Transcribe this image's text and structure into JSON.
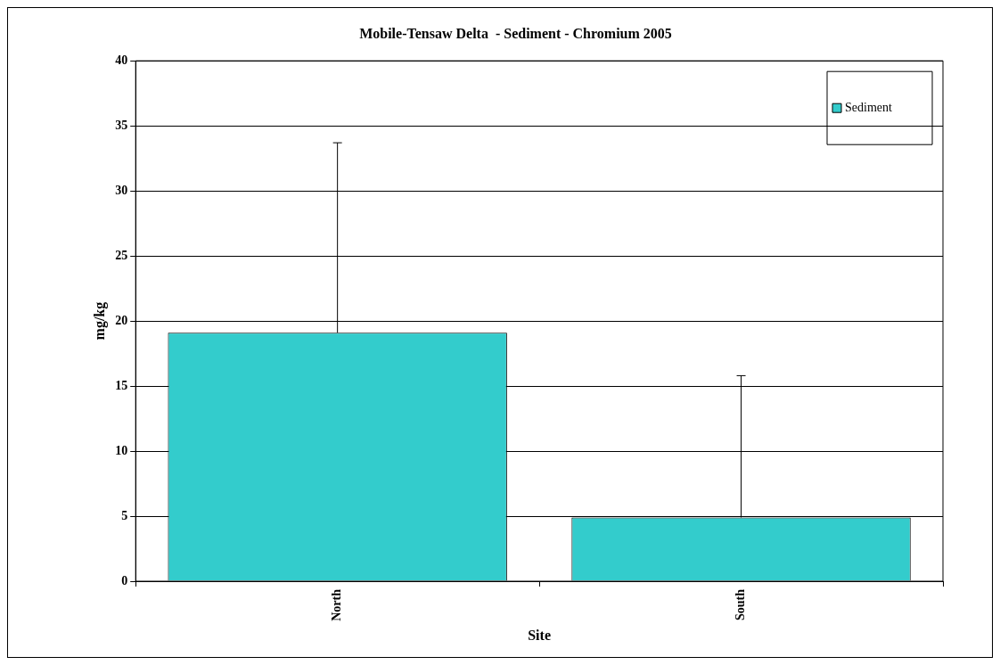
{
  "chart_data": {
    "type": "bar",
    "title": "Mobile-Tensaw Delta  - Sediment - Chromium 2005",
    "xlabel": "Site",
    "ylabel": "mg/kg",
    "categories": [
      "North",
      "South"
    ],
    "series": [
      {
        "name": "Sediment",
        "color": "#33cccc",
        "values": [
          19.1,
          4.9
        ],
        "errors": [
          [
            19.1,
            33.7
          ],
          [
            4.9,
            15.8
          ]
        ]
      }
    ],
    "ylim": [
      0,
      40
    ],
    "yticks": [
      0,
      5,
      10,
      15,
      20,
      25,
      30,
      35,
      40
    ],
    "grid": "y",
    "legend": "top right"
  }
}
